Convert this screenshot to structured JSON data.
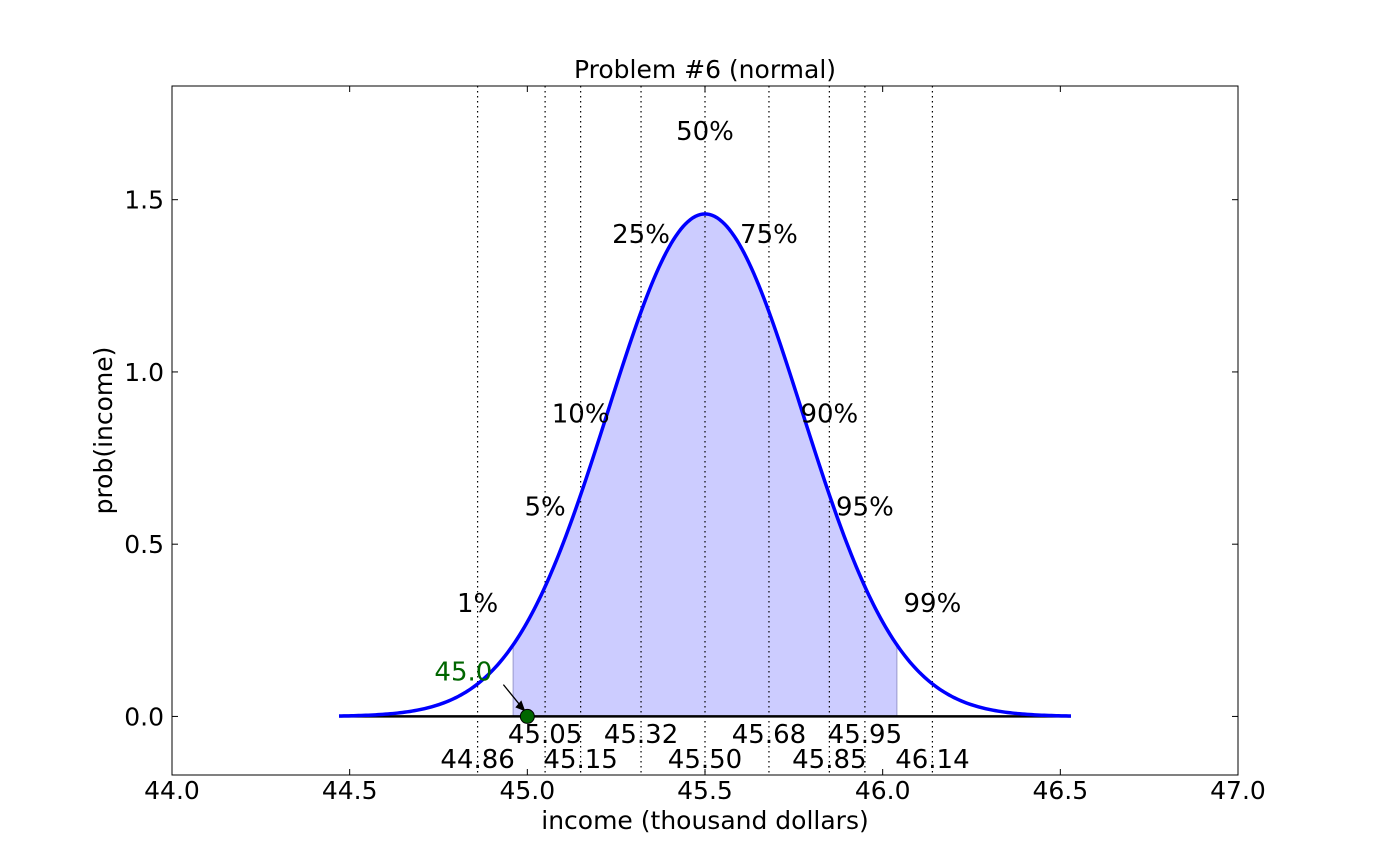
{
  "chart_data": {
    "type": "line",
    "title": "Problem #6 (normal)",
    "xlabel": "income (thousand dollars)",
    "ylabel": "prob(income)",
    "xlim": [
      44.0,
      47.0
    ],
    "ylim": [
      -0.17,
      1.83
    ],
    "x_ticks": [
      "44.0",
      "44.5",
      "45.0",
      "45.5",
      "46.0",
      "46.5",
      "47.0"
    ],
    "y_ticks": [
      "0.0",
      "0.5",
      "1.0",
      "1.5"
    ],
    "grid": false,
    "series": [
      {
        "kind": "normal-pdf",
        "mean": 45.5,
        "sd": 0.2735,
        "x_range": [
          44.47,
          46.53
        ],
        "color": "#0000ff"
      }
    ],
    "shaded_region": {
      "from": 44.96,
      "to": 46.04,
      "color": "#ccccff"
    },
    "baseline": {
      "y": 0.0,
      "from": 44.47,
      "to": 46.53,
      "color": "#000000"
    },
    "percentiles": [
      {
        "label": "1%",
        "x": 44.86,
        "value_label": "44.86",
        "label_y": 0.33,
        "row": "lower"
      },
      {
        "label": "5%",
        "x": 45.05,
        "value_label": "45.05",
        "label_y": 0.61,
        "row": "upper"
      },
      {
        "label": "10%",
        "x": 45.15,
        "value_label": "45.15",
        "label_y": 0.88,
        "row": "lower"
      },
      {
        "label": "25%",
        "x": 45.32,
        "value_label": "45.32",
        "label_y": 1.4,
        "row": "upper"
      },
      {
        "label": "50%",
        "x": 45.5,
        "value_label": "45.50",
        "label_y": 1.7,
        "row": "lower"
      },
      {
        "label": "75%",
        "x": 45.68,
        "value_label": "45.68",
        "label_y": 1.4,
        "row": "upper"
      },
      {
        "label": "90%",
        "x": 45.85,
        "value_label": "45.85",
        "label_y": 0.88,
        "row": "lower"
      },
      {
        "label": "95%",
        "x": 45.95,
        "value_label": "45.95",
        "label_y": 0.61,
        "row": "upper"
      },
      {
        "label": "99%",
        "x": 46.14,
        "value_label": "46.14",
        "label_y": 0.33,
        "row": "lower"
      }
    ],
    "marker": {
      "x": 45.0,
      "y": 0.0,
      "label": "45.0",
      "label_x": 44.82,
      "label_y": 0.13,
      "color": "#006600"
    }
  }
}
